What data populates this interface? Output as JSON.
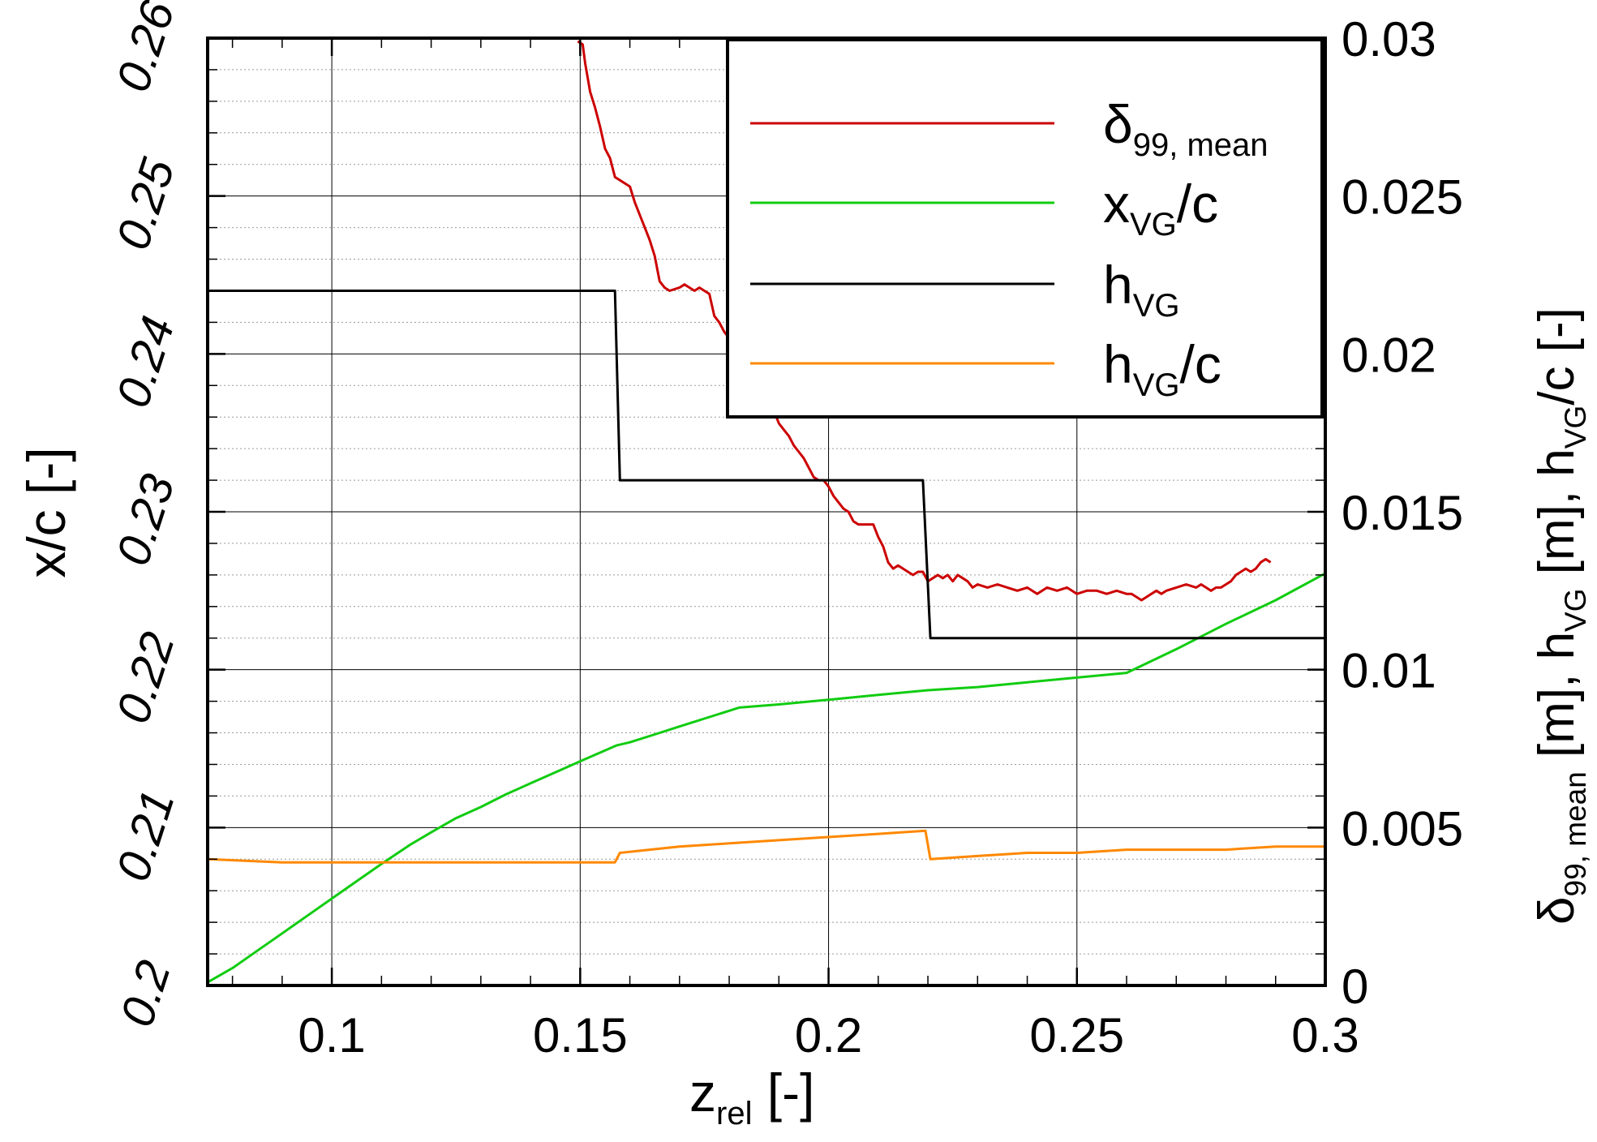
{
  "chart_data": {
    "type": "line",
    "xlabel": {
      "main": "z",
      "sub": "rel",
      "unit": " [-]"
    },
    "ylabel_left": "x/c [-]",
    "ylabel_right": [
      {
        "t": "δ",
        "s": "normal"
      },
      {
        "t": "99, mean",
        "s": "sub"
      },
      {
        "t": " [m], h",
        "s": "normal"
      },
      {
        "t": "VG",
        "s": "sub"
      },
      {
        "t": " [m], h",
        "s": "normal"
      },
      {
        "t": "VG",
        "s": "sub"
      },
      {
        "t": "/c [-]",
        "s": "normal"
      }
    ],
    "xlim": [
      0.075,
      0.3
    ],
    "ylim_left": [
      0.2,
      0.26
    ],
    "ylim_right": [
      0,
      0.03
    ],
    "x_ticks": [
      "0.1",
      "0.15",
      "0.2",
      "0.25",
      "0.3"
    ],
    "y_left_ticks": [
      "0.2",
      "0.21",
      "0.22",
      "0.23",
      "0.24",
      "0.25",
      "0.26"
    ],
    "y_right_ticks": [
      "0",
      "0.005",
      "0.01",
      "0.015",
      "0.02",
      "0.025",
      "0.03"
    ],
    "grid": true,
    "legend_position": "top-right",
    "colors": {
      "delta": "#cc0000",
      "xvg": "#11cc11",
      "hvg": "#000000",
      "hvgc": "#ff8800"
    },
    "series": [
      {
        "key": "delta",
        "legend": [
          {
            "t": "δ",
            "s": "normal"
          },
          {
            "t": "99, mean",
            "s": "sub"
          }
        ],
        "axis": "right",
        "x": [
          0.1495,
          0.1505,
          0.151,
          0.152,
          0.153,
          0.154,
          0.155,
          0.156,
          0.157,
          0.158,
          0.16,
          0.161,
          0.162,
          0.163,
          0.164,
          0.165,
          0.166,
          0.167,
          0.168,
          0.17,
          0.171,
          0.172,
          0.173,
          0.174,
          0.175,
          0.176,
          0.177,
          0.178,
          0.179,
          0.18,
          0.181,
          0.182,
          0.183,
          0.184,
          0.185,
          0.186,
          0.187,
          0.188,
          0.189,
          0.19,
          0.191,
          0.192,
          0.193,
          0.194,
          0.195,
          0.196,
          0.197,
          0.198,
          0.199,
          0.2,
          0.201,
          0.202,
          0.203,
          0.204,
          0.205,
          0.206,
          0.207,
          0.208,
          0.209,
          0.21,
          0.211,
          0.212,
          0.213,
          0.214,
          0.215,
          0.216,
          0.217,
          0.218,
          0.219,
          0.22,
          0.221,
          0.222,
          0.223,
          0.224,
          0.225,
          0.226,
          0.227,
          0.228,
          0.229,
          0.23,
          0.232,
          0.234,
          0.236,
          0.238,
          0.24,
          0.242,
          0.244,
          0.246,
          0.248,
          0.25,
          0.252,
          0.254,
          0.256,
          0.258,
          0.26,
          0.261,
          0.262,
          0.263,
          0.264,
          0.265,
          0.266,
          0.267,
          0.268,
          0.27,
          0.272,
          0.274,
          0.275,
          0.276,
          0.277,
          0.278,
          0.279,
          0.28,
          0.281,
          0.282,
          0.283,
          0.284,
          0.285,
          0.286,
          0.287,
          0.288,
          0.289
        ],
        "y": [
          0.0299,
          0.0298,
          0.0292,
          0.0283,
          0.0278,
          0.0272,
          0.0265,
          0.0262,
          0.0256,
          0.0255,
          0.0253,
          0.0248,
          0.0244,
          0.024,
          0.0236,
          0.0231,
          0.0223,
          0.0221,
          0.022,
          0.0221,
          0.0222,
          0.0221,
          0.022,
          0.0221,
          0.022,
          0.0219,
          0.0212,
          0.021,
          0.0207,
          0.0205,
          0.0202,
          0.0198,
          0.0196,
          0.0193,
          0.0191,
          0.019,
          0.0187,
          0.0184,
          0.0182,
          0.0178,
          0.0176,
          0.0174,
          0.0171,
          0.0169,
          0.0167,
          0.0164,
          0.0161,
          0.016,
          0.016,
          0.0158,
          0.0155,
          0.0153,
          0.0151,
          0.015,
          0.0147,
          0.0146,
          0.0146,
          0.0146,
          0.0146,
          0.0142,
          0.0139,
          0.0134,
          0.0132,
          0.0133,
          0.0132,
          0.0131,
          0.013,
          0.0131,
          0.0131,
          0.0128,
          0.0129,
          0.013,
          0.0129,
          0.013,
          0.0128,
          0.013,
          0.0129,
          0.0128,
          0.0126,
          0.0127,
          0.0126,
          0.0127,
          0.0126,
          0.0125,
          0.0126,
          0.0124,
          0.0126,
          0.0125,
          0.0126,
          0.0124,
          0.0125,
          0.0125,
          0.0124,
          0.0125,
          0.0124,
          0.0124,
          0.0123,
          0.0122,
          0.0123,
          0.0124,
          0.0125,
          0.0124,
          0.0125,
          0.0126,
          0.0127,
          0.0126,
          0.0127,
          0.0126,
          0.0125,
          0.0126,
          0.0126,
          0.0127,
          0.0128,
          0.013,
          0.0131,
          0.0132,
          0.0131,
          0.0132,
          0.0134,
          0.0135,
          0.0134
        ]
      },
      {
        "key": "xvg",
        "legend": [
          {
            "t": "x",
            "s": "normal"
          },
          {
            "t": "VG",
            "s": "sub"
          },
          {
            "t": "/c",
            "s": "normal"
          }
        ],
        "axis": "left",
        "x": [
          0.075,
          0.08,
          0.085,
          0.09,
          0.095,
          0.1,
          0.105,
          0.11,
          0.1157,
          0.12,
          0.125,
          0.13,
          0.135,
          0.14,
          0.145,
          0.15,
          0.1573,
          0.16,
          0.165,
          0.17,
          0.175,
          0.18,
          0.182,
          0.19,
          0.2,
          0.21,
          0.22,
          0.23,
          0.24,
          0.25,
          0.26,
          0.27,
          0.28,
          0.29,
          0.3
        ],
        "y": [
          0.2002,
          0.2011,
          0.2022,
          0.2033,
          0.2044,
          0.2055,
          0.2066,
          0.2077,
          0.2089,
          0.2097,
          0.2106,
          0.2113,
          0.2121,
          0.2128,
          0.2135,
          0.2142,
          0.2152,
          0.2154,
          0.2159,
          0.2164,
          0.2169,
          0.2174,
          0.2176,
          0.2178,
          0.2181,
          0.2184,
          0.2187,
          0.2189,
          0.2192,
          0.2195,
          0.2198,
          0.2213,
          0.2229,
          0.2244,
          0.2261
        ]
      },
      {
        "key": "hvg",
        "legend": [
          {
            "t": "h",
            "s": "normal"
          },
          {
            "t": "VG",
            "s": "sub"
          }
        ],
        "axis": "right",
        "x": [
          0.075,
          0.157,
          0.158,
          0.219,
          0.2205,
          0.3
        ],
        "y": [
          0.022,
          0.022,
          0.016,
          0.016,
          0.011,
          0.011
        ]
      },
      {
        "key": "hvgc",
        "legend": [
          {
            "t": "h",
            "s": "normal"
          },
          {
            "t": "VG",
            "s": "sub"
          },
          {
            "t": "/c",
            "s": "normal"
          }
        ],
        "axis": "right",
        "x": [
          0.075,
          0.09,
          0.1,
          0.11,
          0.12,
          0.13,
          0.14,
          0.15,
          0.157,
          0.158,
          0.17,
          0.18,
          0.19,
          0.2,
          0.21,
          0.2195,
          0.2205,
          0.23,
          0.24,
          0.25,
          0.26,
          0.27,
          0.28,
          0.29,
          0.3
        ],
        "y": [
          0.004,
          0.0039,
          0.0039,
          0.0039,
          0.0039,
          0.0039,
          0.0039,
          0.0039,
          0.0039,
          0.0042,
          0.0044,
          0.0045,
          0.0046,
          0.0047,
          0.0048,
          0.0049,
          0.004,
          0.0041,
          0.0042,
          0.0042,
          0.0043,
          0.0043,
          0.0043,
          0.0044,
          0.0044
        ]
      }
    ]
  }
}
